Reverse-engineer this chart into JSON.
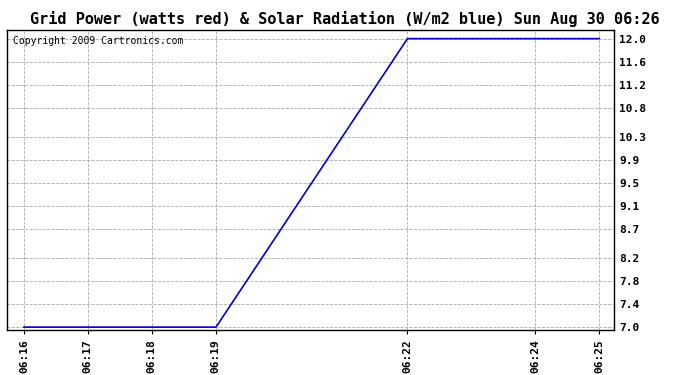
{
  "title": "Grid Power (watts red) & Solar Radiation (W/m2 blue) Sun Aug 30 06:26",
  "copyright_text": "Copyright 2009 Cartronics.com",
  "line_color": "#0000cc",
  "background_color": "#ffffff",
  "plot_background": "#ffffff",
  "grid_color": "#aaaaaa",
  "grid_style": "--",
  "yticks": [
    7.0,
    7.4,
    7.8,
    8.2,
    8.7,
    9.1,
    9.5,
    9.9,
    10.3,
    10.8,
    11.2,
    11.6,
    12.0
  ],
  "ylim": [
    6.95,
    12.15
  ],
  "xtick_labels": [
    "06:16",
    "06:17",
    "06:18",
    "06:19",
    "06:22",
    "06:24",
    "06:25"
  ],
  "xtick_positions": [
    976,
    1036,
    1096,
    1156,
    1336,
    1456,
    1516
  ],
  "xlim": [
    960,
    1530
  ],
  "x_data": [
    976,
    1036,
    1096,
    1156,
    1157,
    1336,
    1456,
    1516
  ],
  "y_data": [
    7.0,
    7.0,
    7.0,
    7.0,
    7.02,
    12.0,
    12.0,
    12.0
  ],
  "title_fontsize": 11,
  "tick_fontsize": 8,
  "copyright_fontsize": 7,
  "line_width": 1.2
}
